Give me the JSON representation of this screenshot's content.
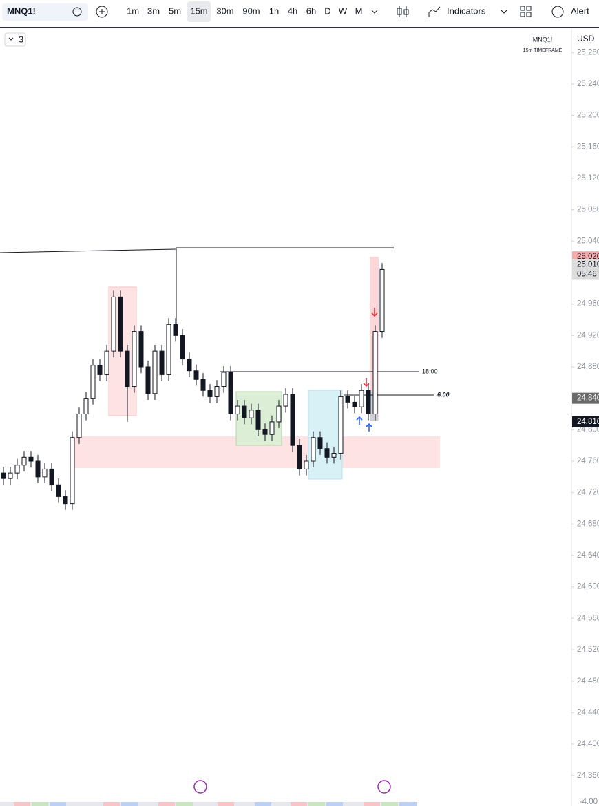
{
  "toolbar": {
    "symbol": "MNQ1!",
    "intervals": [
      "1m",
      "3m",
      "5m",
      "15m",
      "30m",
      "90m",
      "1h",
      "4h",
      "6h",
      "D",
      "W",
      "M"
    ],
    "indicators": "Indicators",
    "alert": "Alert"
  },
  "legend": {
    "count": 3
  },
  "watermark": {
    "symbol": "MNQ1!",
    "timeframe": "15m TIMEFRAME"
  },
  "currency": "USD",
  "annotations": {
    "session": "18:00",
    "points": "6.00",
    "bottom_scale": "-4.00"
  },
  "price_axis": {
    "ylim": [
      24330,
      25310
    ],
    "ticks": [
      {
        "value": 25280,
        "label": "25,280"
      },
      {
        "value": 25240,
        "label": "25,240"
      },
      {
        "value": 25200,
        "label": "25,200"
      },
      {
        "value": 25160,
        "label": "25,160"
      },
      {
        "value": 25120,
        "label": "25,120"
      },
      {
        "value": 25080,
        "label": "25,080"
      },
      {
        "value": 25040,
        "label": "25,040"
      },
      {
        "value": 24960,
        "label": "24,960"
      },
      {
        "value": 24920,
        "label": "24,920"
      },
      {
        "value": 24880,
        "label": "24,880"
      },
      {
        "value": 24800,
        "label": "24,800"
      },
      {
        "value": 24760,
        "label": "24,760"
      },
      {
        "value": 24720,
        "label": "24,720"
      },
      {
        "value": 24680,
        "label": "24,680"
      },
      {
        "value": 24640,
        "label": "24,640"
      },
      {
        "value": 24600,
        "label": "24,600"
      },
      {
        "value": 24560,
        "label": "24,560"
      },
      {
        "value": 24520,
        "label": "24,520"
      },
      {
        "value": 24480,
        "label": "24,480"
      },
      {
        "value": 24440,
        "label": "24,440"
      },
      {
        "value": 24400,
        "label": "24,400"
      },
      {
        "value": 24360,
        "label": "24,360"
      }
    ]
  },
  "badges": [
    {
      "value": 25020,
      "label": "25,020",
      "color": "#f7a9a8",
      "text_color": "#131722"
    },
    {
      "value": 25010,
      "label": "25,010",
      "color": "#dcdcdc",
      "text_color": "#131722",
      "countdown": "05:46"
    },
    {
      "value": 24840,
      "label": "24,840",
      "color": "#6a6a6a",
      "text_color": "#ffffff"
    },
    {
      "value": 24810,
      "label": "24,810",
      "color": "#131722",
      "text_color": "#ffffff"
    }
  ],
  "candles": [
    [
      24745,
      24753,
      24730,
      24738
    ],
    [
      24738,
      24753,
      24730,
      24745
    ],
    [
      24745,
      24763,
      24737,
      24755
    ],
    [
      24755,
      24773,
      24747,
      24765
    ],
    [
      24765,
      24773,
      24752,
      24760
    ],
    [
      24760,
      24768,
      24732,
      24740
    ],
    [
      24740,
      24758,
      24732,
      24750
    ],
    [
      24750,
      24758,
      24722,
      24730
    ],
    [
      24730,
      24738,
      24707,
      24715
    ],
    [
      24715,
      24723,
      24698,
      24706
    ],
    [
      24706,
      24798,
      24698,
      24790
    ],
    [
      24790,
      24828,
      24782,
      24820
    ],
    [
      24820,
      24848,
      24812,
      24840
    ],
    [
      24840,
      24890,
      24832,
      24882
    ],
    [
      24882,
      24890,
      24862,
      24870
    ],
    [
      24870,
      24908,
      24862,
      24900
    ],
    [
      24900,
      24977,
      24892,
      24969
    ],
    [
      24969,
      24977,
      24892,
      24900
    ],
    [
      24900,
      24908,
      24810,
      24855
    ],
    [
      24855,
      24933,
      24847,
      24925
    ],
    [
      24925,
      24933,
      24872,
      24880
    ],
    [
      24880,
      24888,
      24838,
      24846
    ],
    [
      24846,
      24908,
      24838,
      24900
    ],
    [
      24900,
      24908,
      24862,
      24870
    ],
    [
      24870,
      24942,
      24862,
      24934
    ],
    [
      24934,
      24942,
      24912,
      24920
    ],
    [
      24920,
      24928,
      24882,
      24890
    ],
    [
      24890,
      24898,
      24867,
      24875
    ],
    [
      24875,
      24883,
      24856,
      24864
    ],
    [
      24864,
      24872,
      24842,
      24850
    ],
    [
      24850,
      24858,
      24834,
      24842
    ],
    [
      24842,
      24863,
      24834,
      24855
    ],
    [
      24855,
      24881,
      24847,
      24873
    ],
    [
      24873,
      24881,
      24812,
      24820
    ],
    [
      24820,
      24838,
      24812,
      24830
    ],
    [
      24830,
      24838,
      24807,
      24815
    ],
    [
      24815,
      24833,
      24807,
      24825
    ],
    [
      24825,
      24833,
      24792,
      24800
    ],
    [
      24800,
      24808,
      24786,
      24794
    ],
    [
      24794,
      24818,
      24786,
      24810
    ],
    [
      24810,
      24838,
      24802,
      24830
    ],
    [
      24830,
      24853,
      24822,
      24845
    ],
    [
      24845,
      24853,
      24772,
      24780
    ],
    [
      24780,
      24788,
      24742,
      24750
    ],
    [
      24750,
      24768,
      24742,
      24760
    ],
    [
      24760,
      24798,
      24752,
      24790
    ],
    [
      24790,
      24798,
      24768,
      24776
    ],
    [
      24776,
      24784,
      24757,
      24765
    ],
    [
      24765,
      24778,
      24757,
      24770
    ],
    [
      24770,
      24850,
      24762,
      24842
    ],
    [
      24842,
      24850,
      24827,
      24835
    ],
    [
      24835,
      24843,
      24821,
      24829
    ],
    [
      24829,
      24858,
      24821,
      24850
    ],
    [
      24850,
      24858,
      24812,
      24820
    ],
    [
      24820,
      24933,
      24812,
      24925
    ],
    [
      24925,
      25012,
      24917,
      25004
    ]
  ]
}
